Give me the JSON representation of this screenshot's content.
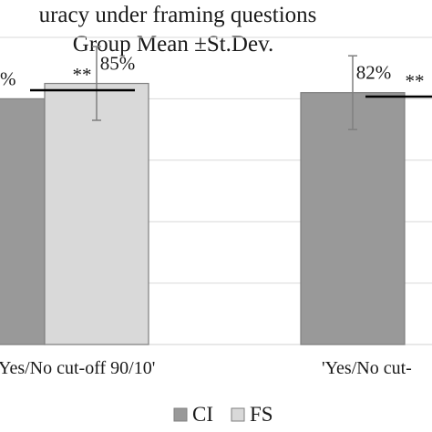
{
  "chart_data": {
    "type": "bar",
    "title_line1": "uracy under framing questions",
    "title_line2": "Group Mean ±St.Dev.",
    "categories": [
      "Yes/No cut-off 90/10'",
      "'Yes/No cut-"
    ],
    "series": [
      {
        "name": "CI",
        "color": "#999999",
        "values": [
          80,
          82
        ],
        "err": [
          12,
          12
        ],
        "labels": [
          "%",
          "82%"
        ]
      },
      {
        "name": "FS",
        "color": "#d9d9d9",
        "values": [
          85,
          null
        ],
        "err": [
          12,
          null
        ],
        "labels": [
          "85%",
          ""
        ]
      }
    ],
    "significance": [
      {
        "label": "**"
      },
      {
        "label": "**"
      }
    ],
    "ylim": [
      0,
      100
    ],
    "grid": true,
    "legend": "bottom"
  }
}
